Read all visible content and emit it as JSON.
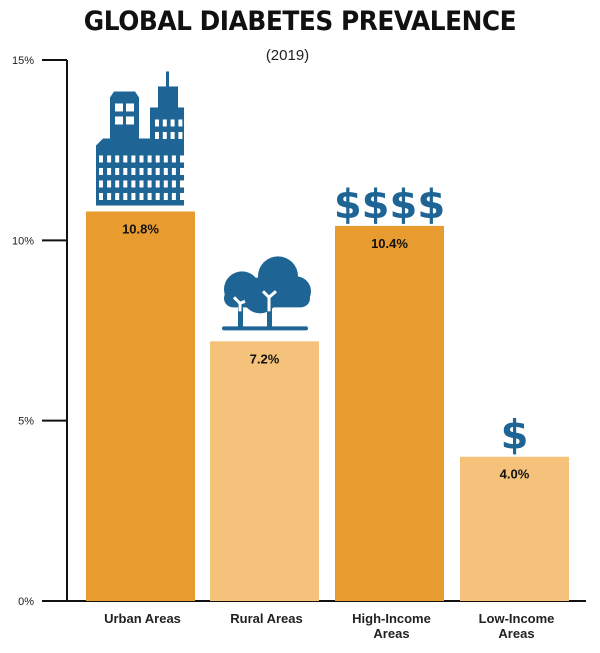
{
  "chart_data": {
    "type": "bar",
    "title": "GLOBAL DIABETES PREVALENCE",
    "subtitle": "(2019)",
    "xlabel": "",
    "ylabel": "",
    "ylim": [
      0,
      15
    ],
    "yticks": [
      0,
      5,
      10,
      15
    ],
    "ytick_labels": [
      "0%",
      "5%",
      "10%",
      "15%"
    ],
    "grid": false,
    "categories": [
      "Urban Areas",
      "Rural Areas",
      "High-Income Areas",
      "Low-Income Areas"
    ],
    "category_lines": [
      [
        "Urban Areas"
      ],
      [
        "Rural Areas"
      ],
      [
        "High-Income",
        "Areas"
      ],
      [
        "Low-Income",
        "Areas"
      ]
    ],
    "values": [
      10.8,
      7.2,
      10.4,
      4.0
    ],
    "value_labels": [
      "10.8%",
      "7.2%",
      "10.4%",
      "4.0%"
    ],
    "bar_colors": [
      "#E89C30",
      "#F4C27A",
      "#E89C30",
      "#F4C27A"
    ],
    "icons": [
      "city-buildings-icon",
      "trees-icon",
      "four-dollar-signs-icon",
      "single-dollar-sign-icon"
    ],
    "icon_text": [
      "",
      "",
      "$$$$",
      "$"
    ],
    "icon_color": "#1E6494"
  }
}
